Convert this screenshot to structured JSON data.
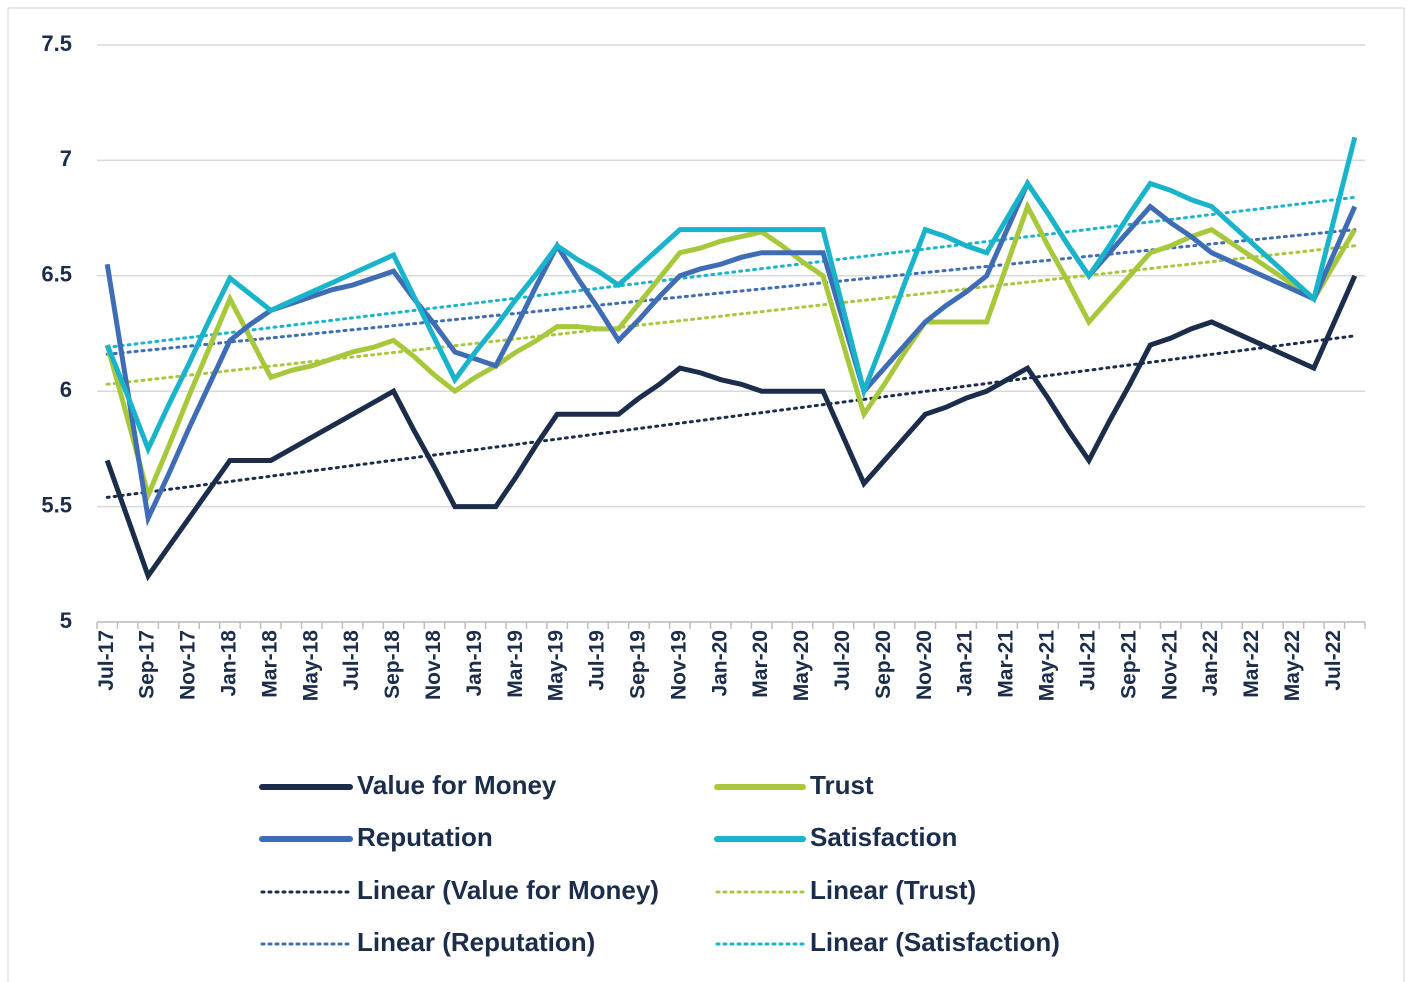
{
  "chart_data": {
    "type": "line",
    "categories": [
      "Jul-17",
      null,
      "Sep-17",
      null,
      "Nov-17",
      null,
      "Jan-18",
      null,
      "Mar-18",
      null,
      "May-18",
      null,
      "Jul-18",
      null,
      "Sep-18",
      null,
      "Nov-18",
      null,
      "Jan-19",
      null,
      "Mar-19",
      null,
      "May-19",
      null,
      "Jul-19",
      null,
      "Sep-19",
      null,
      "Nov-19",
      null,
      "Jan-20",
      null,
      "Mar-20",
      null,
      "May-20",
      null,
      "Jul-20",
      null,
      "Sep-20",
      null,
      "Nov-20",
      null,
      "Jan-21",
      null,
      "Mar-21",
      null,
      "May-21",
      null,
      "Jul-21",
      null,
      "Sep-21",
      null,
      "Nov-21",
      null,
      "Jan-22",
      null,
      "Mar-22",
      null,
      "May-22",
      null,
      "Jul-22",
      null
    ],
    "series": [
      {
        "name": "Value for Money",
        "color": "#1b2d4a",
        "values": [
          5.7,
          5.45,
          5.2,
          5.325,
          5.45,
          5.575,
          5.7,
          5.7,
          5.7,
          5.75,
          5.8,
          5.85,
          5.9,
          5.95,
          6.0,
          5.83,
          5.67,
          5.5,
          5.5,
          5.5,
          5.63,
          5.77,
          5.9,
          5.9,
          5.9,
          5.9,
          5.97,
          6.03,
          6.1,
          6.08,
          6.05,
          6.03,
          6.0,
          6.0,
          6.0,
          6.0,
          5.8,
          5.6,
          5.7,
          5.8,
          5.9,
          5.93,
          5.97,
          6.0,
          6.05,
          6.1,
          5.97,
          5.83,
          5.7,
          5.87,
          6.03,
          6.2,
          6.23,
          6.27,
          6.3,
          6.26,
          6.22,
          6.18,
          6.14,
          6.1,
          6.3,
          6.5
        ]
      },
      {
        "name": "Trust",
        "color": "#a8c83c",
        "values": [
          6.2,
          5.88,
          5.55,
          5.76,
          5.98,
          6.19,
          6.4,
          6.23,
          6.06,
          6.09,
          6.11,
          6.14,
          6.17,
          6.19,
          6.22,
          6.15,
          6.07,
          6.0,
          6.06,
          6.11,
          6.17,
          6.22,
          6.28,
          6.28,
          6.27,
          6.27,
          6.38,
          6.49,
          6.6,
          6.62,
          6.65,
          6.67,
          6.69,
          6.63,
          6.56,
          6.5,
          6.2,
          5.9,
          6.03,
          6.17,
          6.3,
          6.3,
          6.3,
          6.3,
          6.55,
          6.8,
          6.63,
          6.47,
          6.3,
          6.4,
          6.5,
          6.6,
          6.63,
          6.67,
          6.7,
          6.64,
          6.58,
          6.52,
          6.46,
          6.4,
          6.55,
          6.7
        ]
      },
      {
        "name": "Reputation",
        "color": "#3f6db5",
        "values": [
          6.55,
          6.0,
          5.45,
          5.64,
          5.84,
          6.03,
          6.22,
          6.29,
          6.35,
          6.38,
          6.41,
          6.44,
          6.46,
          6.49,
          6.52,
          6.4,
          6.29,
          6.17,
          6.14,
          6.11,
          6.28,
          6.46,
          6.63,
          6.49,
          6.36,
          6.22,
          6.31,
          6.41,
          6.5,
          6.53,
          6.55,
          6.58,
          6.6,
          6.6,
          6.6,
          6.6,
          6.3,
          6.0,
          6.1,
          6.2,
          6.3,
          6.37,
          6.43,
          6.5,
          6.7,
          6.9,
          6.77,
          6.63,
          6.5,
          6.6,
          6.7,
          6.8,
          6.73,
          6.67,
          6.6,
          6.56,
          6.52,
          6.48,
          6.44,
          6.4,
          6.6,
          6.8
        ]
      },
      {
        "name": "Satisfaction",
        "color": "#1ab3cc",
        "values": [
          6.2,
          5.98,
          5.75,
          5.94,
          6.12,
          6.31,
          6.49,
          6.42,
          6.35,
          6.39,
          6.43,
          6.47,
          6.51,
          6.55,
          6.59,
          6.41,
          6.23,
          6.05,
          6.17,
          6.28,
          6.4,
          6.51,
          6.63,
          6.57,
          6.52,
          6.46,
          6.54,
          6.62,
          6.7,
          6.7,
          6.7,
          6.7,
          6.7,
          6.7,
          6.7,
          6.7,
          6.35,
          6.0,
          6.23,
          6.47,
          6.7,
          6.67,
          6.63,
          6.6,
          6.75,
          6.9,
          6.77,
          6.63,
          6.5,
          6.63,
          6.77,
          6.9,
          6.87,
          6.83,
          6.8,
          6.72,
          6.64,
          6.56,
          6.48,
          6.4,
          6.75,
          7.1
        ]
      }
    ],
    "trendlines": [
      {
        "name": "Linear (Value for Money)",
        "color": "#1b2d4a",
        "start": 5.54,
        "end": 6.24
      },
      {
        "name": "Linear (Trust)",
        "color": "#a8c83c",
        "start": 6.03,
        "end": 6.63
      },
      {
        "name": "Linear (Reputation)",
        "color": "#3f6db5",
        "start": 6.16,
        "end": 6.7
      },
      {
        "name": "Linear (Satisfaction)",
        "color": "#1ab3cc",
        "start": 6.19,
        "end": 6.84
      }
    ],
    "ylim": [
      5,
      7.5
    ],
    "yticks": [
      5,
      5.5,
      6,
      6.5,
      7,
      7.5
    ],
    "grid": true
  }
}
